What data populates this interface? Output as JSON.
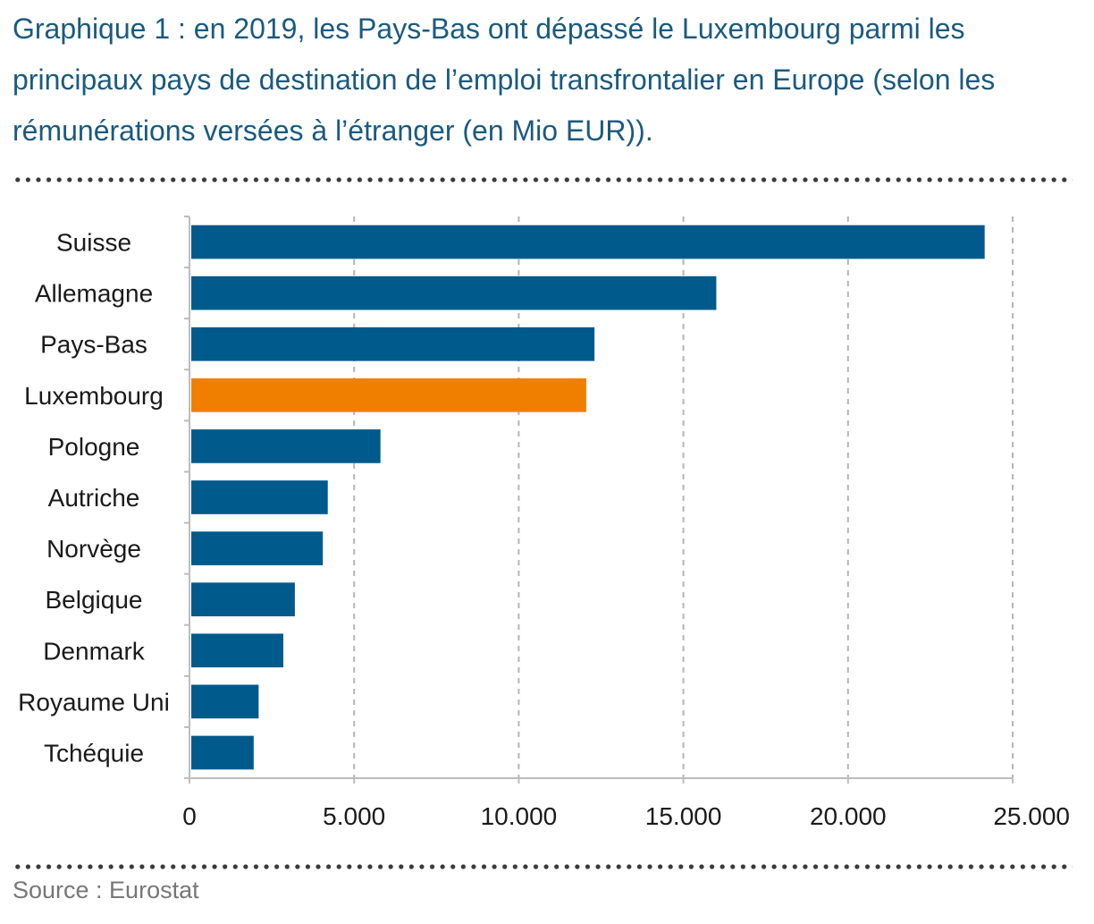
{
  "title": "Graphique 1 : en 2019, les Pays-Bas ont dépassé le Luxembourg parmi les principaux pays de destination de l’emploi transfrontalier en Europe (selon les rémunérations versées à l’étranger (en Mio EUR)).",
  "source": "Source : Eurostat",
  "colors": {
    "default_bar": "#005a8b",
    "highlight_bar": "#f07f00",
    "title": "#1b5a7e",
    "grid": "#b5b5b5"
  },
  "chart_data": {
    "type": "bar",
    "orientation": "horizontal",
    "categories": [
      "Suisse",
      "Allemagne",
      "Pays-Bas",
      "Luxembourg",
      "Pologne",
      "Autriche",
      "Norvège",
      "Belgique",
      "Denmark",
      "Royaume Uni",
      "Tchéquie"
    ],
    "values": [
      24150,
      16000,
      12300,
      12050,
      5800,
      4200,
      4050,
      3200,
      2850,
      2100,
      1950
    ],
    "highlight": "Luxembourg",
    "xlim": [
      0,
      25000
    ],
    "xticks": [
      0,
      5000,
      10000,
      15000,
      20000,
      25000
    ],
    "xtick_labels": [
      "0",
      "5.000",
      "10.000",
      "15.000",
      "20.000",
      "25.000"
    ],
    "grid": "vertical dashed",
    "legend": "none"
  }
}
